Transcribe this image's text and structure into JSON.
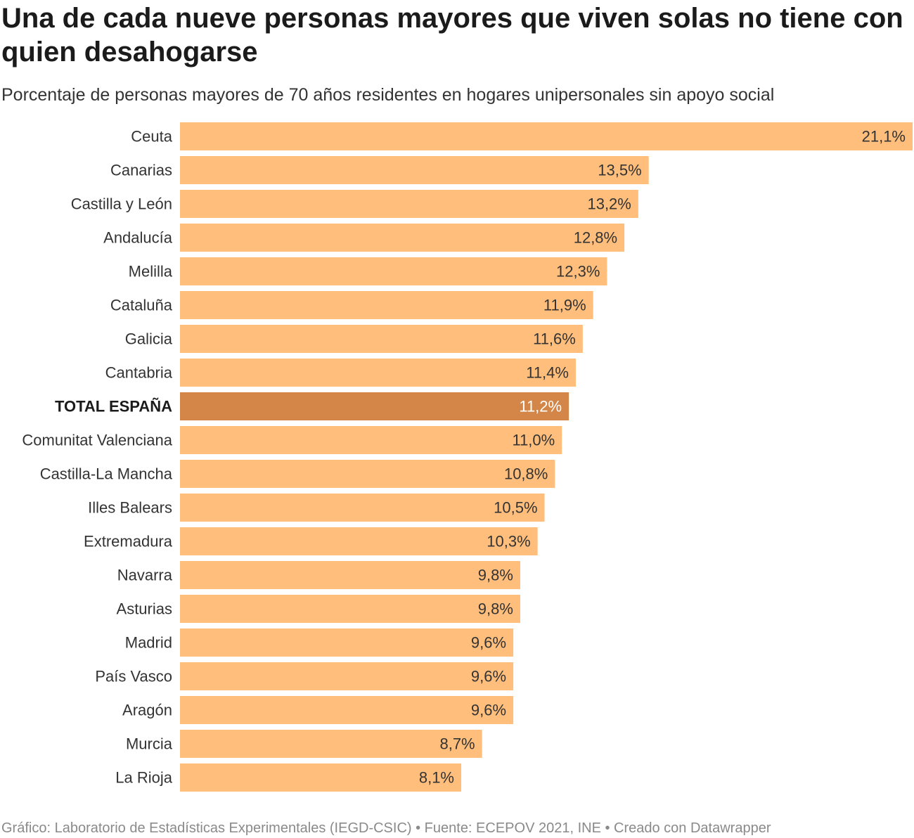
{
  "header": {
    "title": "Una de cada nueve personas mayores que viven solas no tiene con quien desahogarse",
    "subtitle": "Porcentaje de personas mayores de 70 años residentes en hogares unipersonales sin apoyo social"
  },
  "footer": {
    "credit": "Gráfico: Laboratorio de Estadísticas Experimentales (IEGD-CSIC) • Fuente: ECEPOV 2021, INE • Creado con Datawrapper"
  },
  "colors": {
    "bar": "#ffbe7c",
    "highlight": "#d38647",
    "text": "#333333",
    "highlight_text": "#ffffff"
  },
  "chart_data": {
    "type": "bar",
    "orientation": "horizontal",
    "title": "Una de cada nueve personas mayores que viven solas no tiene con quien desahogarse",
    "subtitle": "Porcentaje de personas mayores de 70 años residentes en hogares unipersonales sin apoyo social",
    "xlabel": "",
    "ylabel": "",
    "xlim": [
      0,
      21.1
    ],
    "unit": "%",
    "highlight": "TOTAL ESPAÑA",
    "categories": [
      "Ceuta",
      "Canarias",
      "Castilla y León",
      "Andalucía",
      "Melilla",
      "Cataluña",
      "Galicia",
      "Cantabria",
      "TOTAL ESPAÑA",
      "Comunitat Valenciana",
      "Castilla-La Mancha",
      "Illes Balears",
      "Extremadura",
      "Navarra",
      "Asturias",
      "Madrid",
      "País Vasco",
      "Aragón",
      "Murcia",
      "La Rioja"
    ],
    "values": [
      21.1,
      13.5,
      13.2,
      12.8,
      12.3,
      11.9,
      11.6,
      11.4,
      11.2,
      11.0,
      10.8,
      10.5,
      10.3,
      9.8,
      9.8,
      9.6,
      9.6,
      9.6,
      8.7,
      8.1
    ],
    "labels": [
      "21,1%",
      "13,5%",
      "13,2%",
      "12,8%",
      "12,3%",
      "11,9%",
      "11,6%",
      "11,4%",
      "11,2%",
      "11,0%",
      "10,8%",
      "10,5%",
      "10,3%",
      "9,8%",
      "9,8%",
      "9,6%",
      "9,6%",
      "9,6%",
      "8,7%",
      "8,1%"
    ]
  }
}
